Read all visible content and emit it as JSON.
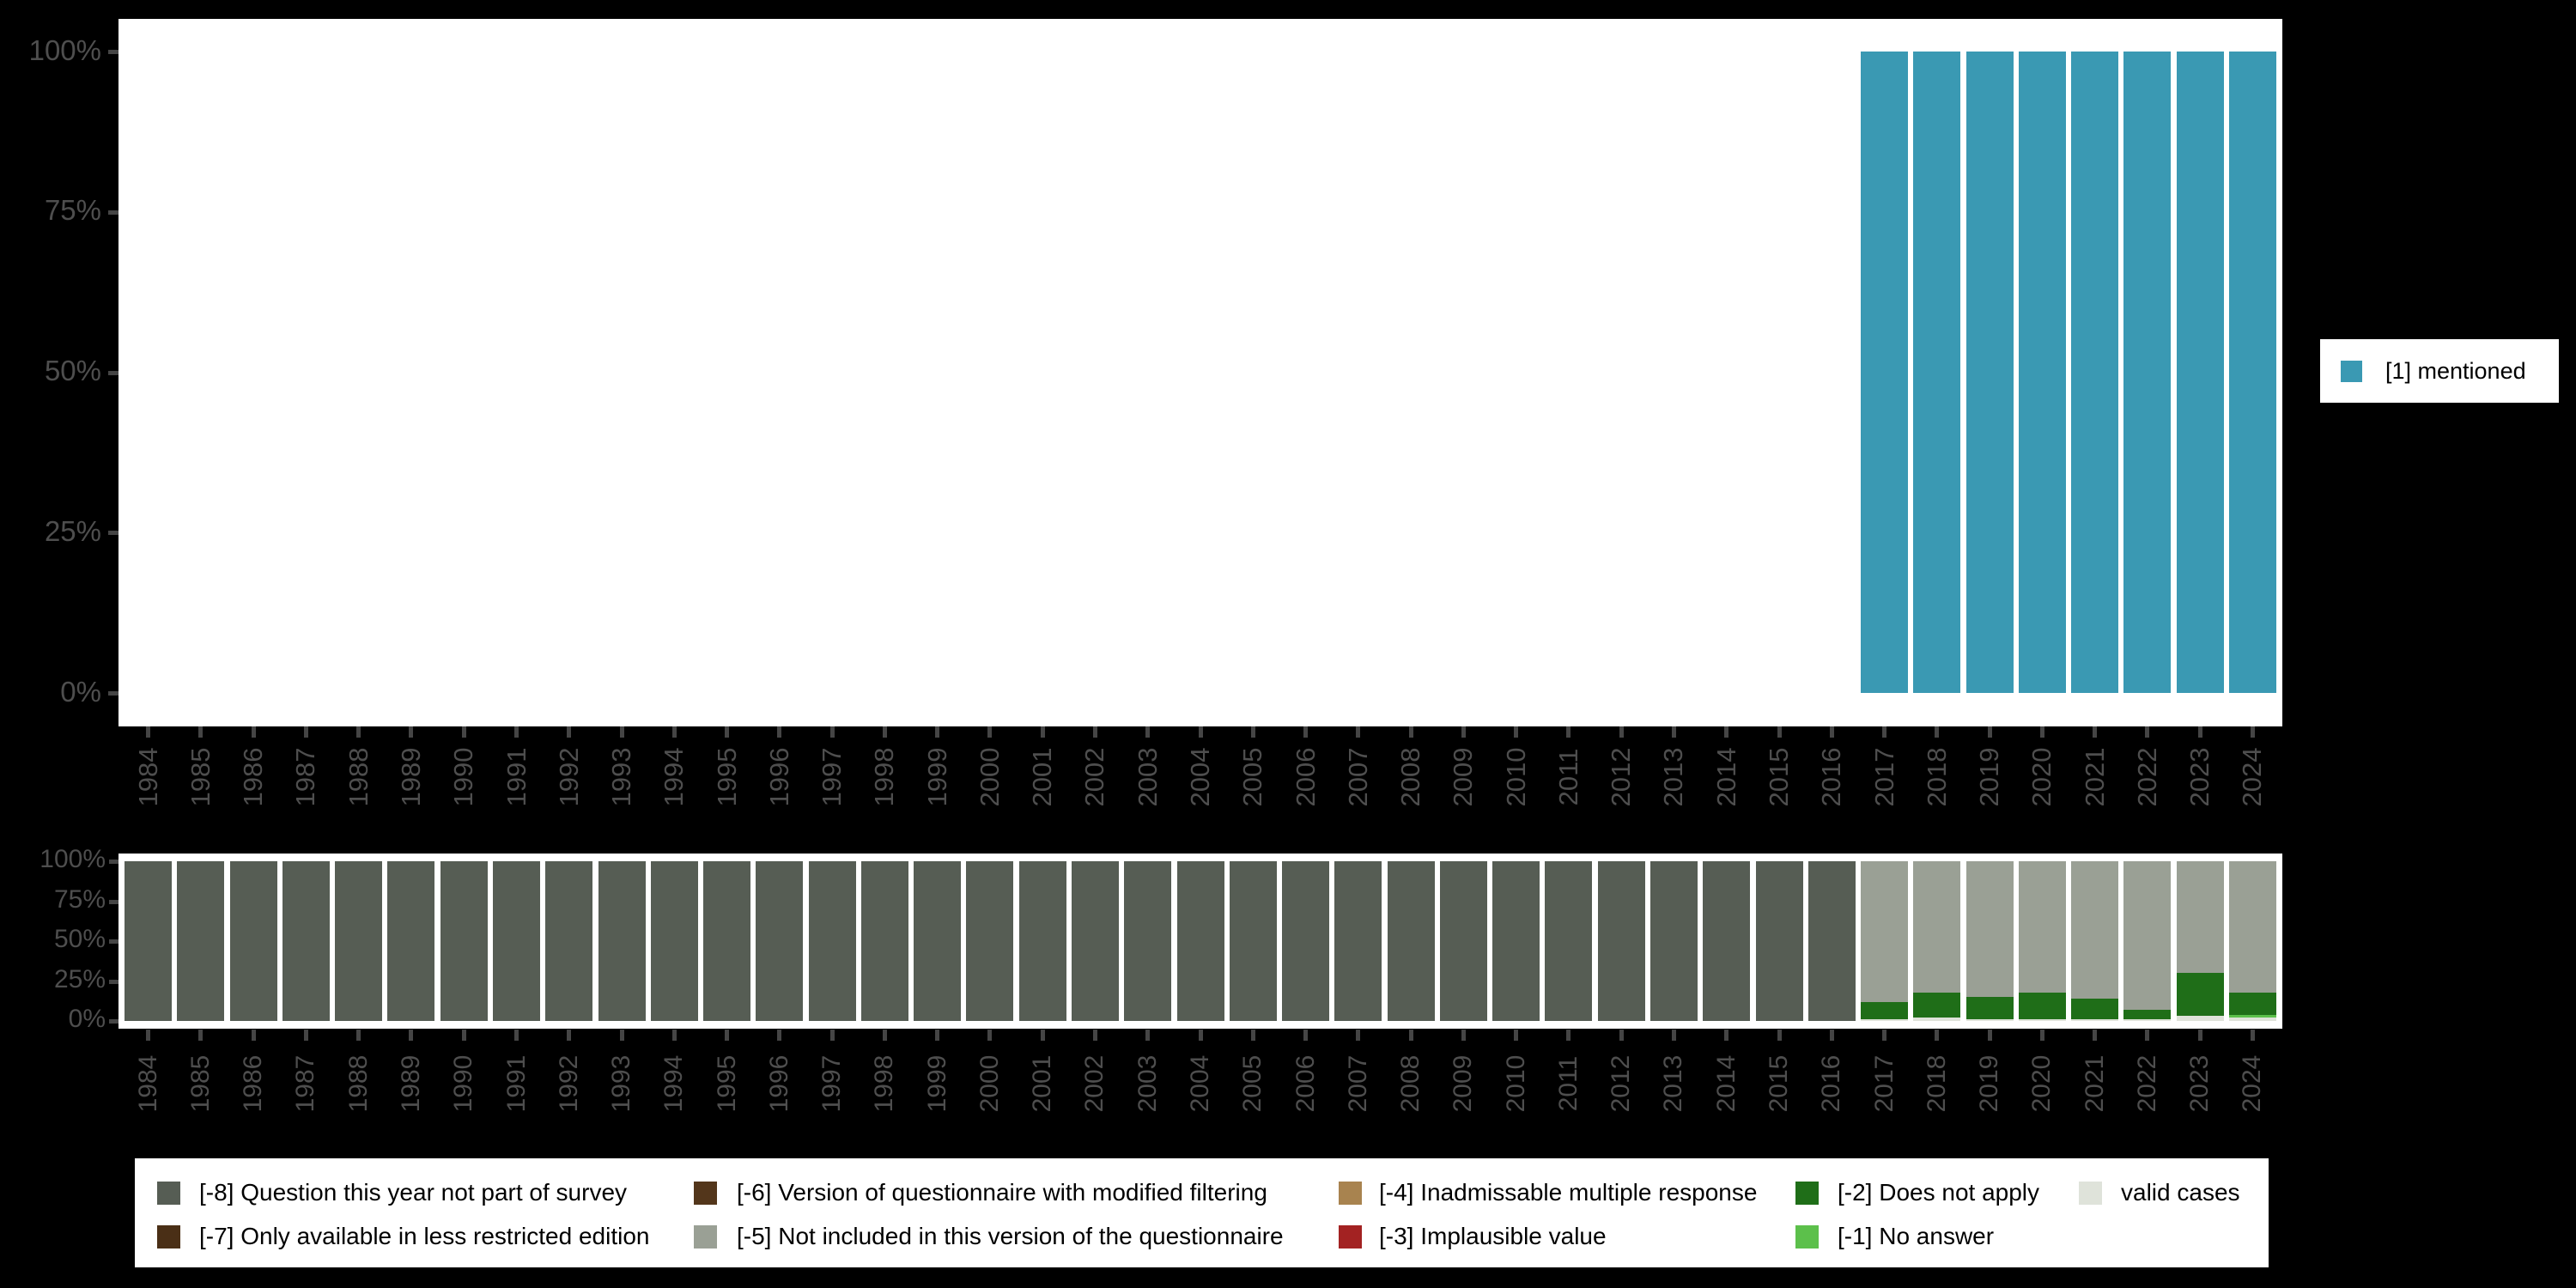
{
  "background_color": "#000000",
  "panel_color": "#ffffff",
  "axis": {
    "label_color": "#4e4e4e",
    "tick_color": "#454545",
    "y_tick_labels_top_to_bottom": [
      "100%",
      "75%",
      "50%",
      "25%",
      "0%"
    ]
  },
  "top_legend": {
    "label": "[1] mentioned",
    "color": "#3a99b3"
  },
  "chart_data": [
    {
      "type": "bar",
      "stacked": true,
      "unit": "percent",
      "title": "",
      "xlabel": "",
      "ylabel": "",
      "ylim": [
        0,
        100
      ],
      "yticks": [
        "0%",
        "25%",
        "50%",
        "75%",
        "100%"
      ],
      "grid": false,
      "legend_position": "right",
      "x": [
        "1984",
        "1985",
        "1986",
        "1987",
        "1988",
        "1989",
        "1990",
        "1991",
        "1992",
        "1993",
        "1994",
        "1995",
        "1996",
        "1997",
        "1998",
        "1999",
        "2000",
        "2001",
        "2002",
        "2003",
        "2004",
        "2005",
        "2006",
        "2007",
        "2008",
        "2009",
        "2010",
        "2011",
        "2012",
        "2013",
        "2014",
        "2015",
        "2016",
        "2017",
        "2018",
        "2019",
        "2020",
        "2021",
        "2022",
        "2023",
        "2024"
      ],
      "series": [
        {
          "name": "[1] mentioned",
          "color": "#3a99b3",
          "values": [
            0,
            0,
            0,
            0,
            0,
            0,
            0,
            0,
            0,
            0,
            0,
            0,
            0,
            0,
            0,
            0,
            0,
            0,
            0,
            0,
            0,
            0,
            0,
            0,
            0,
            0,
            0,
            0,
            0,
            0,
            0,
            0,
            0,
            100,
            100,
            100,
            100,
            100,
            100,
            100,
            100
          ]
        }
      ],
      "stack_bottom_to_top": [
        "[1] mentioned"
      ]
    },
    {
      "type": "bar",
      "stacked": true,
      "unit": "percent",
      "title": "",
      "xlabel": "",
      "ylabel": "",
      "ylim": [
        0,
        100
      ],
      "yticks": [
        "0%",
        "25%",
        "50%",
        "75%",
        "100%"
      ],
      "grid": false,
      "legend_position": "bottom",
      "x": [
        "1984",
        "1985",
        "1986",
        "1987",
        "1988",
        "1989",
        "1990",
        "1991",
        "1992",
        "1993",
        "1994",
        "1995",
        "1996",
        "1997",
        "1998",
        "1999",
        "2000",
        "2001",
        "2002",
        "2003",
        "2004",
        "2005",
        "2006",
        "2007",
        "2008",
        "2009",
        "2010",
        "2011",
        "2012",
        "2013",
        "2014",
        "2015",
        "2016",
        "2017",
        "2018",
        "2019",
        "2020",
        "2021",
        "2022",
        "2023",
        "2024"
      ],
      "series": [
        {
          "name": "[-8] Question this year not part of survey",
          "color": "#565d54",
          "values": [
            100,
            100,
            100,
            100,
            100,
            100,
            100,
            100,
            100,
            100,
            100,
            100,
            100,
            100,
            100,
            100,
            100,
            100,
            100,
            100,
            100,
            100,
            100,
            100,
            100,
            100,
            100,
            100,
            100,
            100,
            100,
            100,
            100,
            0,
            0,
            0,
            0,
            0,
            0,
            0,
            0
          ]
        },
        {
          "name": "[-7] Only available in less restricted edition",
          "color": "#4a2f16",
          "values": [
            0,
            0,
            0,
            0,
            0,
            0,
            0,
            0,
            0,
            0,
            0,
            0,
            0,
            0,
            0,
            0,
            0,
            0,
            0,
            0,
            0,
            0,
            0,
            0,
            0,
            0,
            0,
            0,
            0,
            0,
            0,
            0,
            0,
            0,
            0,
            0,
            0,
            0,
            0,
            0,
            0
          ]
        },
        {
          "name": "[-6] Version of questionnaire with modified filtering",
          "color": "#53361b",
          "values": [
            0,
            0,
            0,
            0,
            0,
            0,
            0,
            0,
            0,
            0,
            0,
            0,
            0,
            0,
            0,
            0,
            0,
            0,
            0,
            0,
            0,
            0,
            0,
            0,
            0,
            0,
            0,
            0,
            0,
            0,
            0,
            0,
            0,
            0,
            0,
            0,
            0,
            0,
            0,
            0,
            0
          ]
        },
        {
          "name": "[-5] Not included in this version of the questionnaire",
          "color": "#9aa095",
          "values": [
            0,
            0,
            0,
            0,
            0,
            0,
            0,
            0,
            0,
            0,
            0,
            0,
            0,
            0,
            0,
            0,
            0,
            0,
            0,
            0,
            0,
            0,
            0,
            0,
            0,
            0,
            0,
            0,
            0,
            0,
            0,
            0,
            0,
            88,
            82,
            85,
            82,
            86,
            93,
            70,
            82
          ]
        },
        {
          "name": "[-4] Inadmissable multiple response",
          "color": "#a8834f",
          "values": [
            0,
            0,
            0,
            0,
            0,
            0,
            0,
            0,
            0,
            0,
            0,
            0,
            0,
            0,
            0,
            0,
            0,
            0,
            0,
            0,
            0,
            0,
            0,
            0,
            0,
            0,
            0,
            0,
            0,
            0,
            0,
            0,
            0,
            0,
            0,
            0,
            0,
            0,
            0,
            0,
            0
          ]
        },
        {
          "name": "[-3] Implausible value",
          "color": "#a32222",
          "values": [
            0,
            0,
            0,
            0,
            0,
            0,
            0,
            0,
            0,
            0,
            0,
            0,
            0,
            0,
            0,
            0,
            0,
            0,
            0,
            0,
            0,
            0,
            0,
            0,
            0,
            0,
            0,
            0,
            0,
            0,
            0,
            0,
            0,
            0,
            0,
            0,
            0,
            0,
            0,
            0,
            0
          ]
        },
        {
          "name": "[-2] Does not apply",
          "color": "#1f6e18",
          "values": [
            0,
            0,
            0,
            0,
            0,
            0,
            0,
            0,
            0,
            0,
            0,
            0,
            0,
            0,
            0,
            0,
            0,
            0,
            0,
            0,
            0,
            0,
            0,
            0,
            0,
            0,
            0,
            0,
            0,
            0,
            0,
            0,
            0,
            11,
            16,
            14,
            17,
            13,
            6,
            27,
            14
          ]
        },
        {
          "name": "[-1] No answer",
          "color": "#5cc04b",
          "values": [
            0,
            0,
            0,
            0,
            0,
            0,
            0,
            0,
            0,
            0,
            0,
            0,
            0,
            0,
            0,
            0,
            0,
            0,
            0,
            0,
            0,
            0,
            0,
            0,
            0,
            0,
            0,
            0,
            0,
            0,
            0,
            0,
            0,
            0,
            0,
            0,
            0,
            0,
            0,
            0,
            2
          ]
        },
        {
          "name": "valid cases",
          "color": "#dfe3da",
          "values": [
            0,
            0,
            0,
            0,
            0,
            0,
            0,
            0,
            0,
            0,
            0,
            0,
            0,
            0,
            0,
            0,
            0,
            0,
            0,
            0,
            0,
            0,
            0,
            0,
            0,
            0,
            0,
            0,
            0,
            0,
            0,
            0,
            0,
            1,
            2,
            1,
            1,
            1,
            1,
            3,
            2
          ]
        }
      ],
      "stack_bottom_to_top": [
        "valid cases",
        "[-1] No answer",
        "[-2] Does not apply",
        "[-5] Not included in this version of the questionnaire",
        "[-8] Question this year not part of survey"
      ]
    }
  ],
  "bottom_legend": {
    "columns": [
      [
        "[-8] Question this year not part of survey",
        "[-7] Only available in less restricted edition"
      ],
      [
        "[-6] Version of questionnaire with modified filtering",
        "[-5] Not included in this version of the questionnaire"
      ],
      [
        "[-4] Inadmissable multiple response",
        "[-3] Implausible value"
      ],
      [
        "[-2] Does not apply",
        "[-1] No answer"
      ],
      [
        "valid cases"
      ]
    ]
  }
}
